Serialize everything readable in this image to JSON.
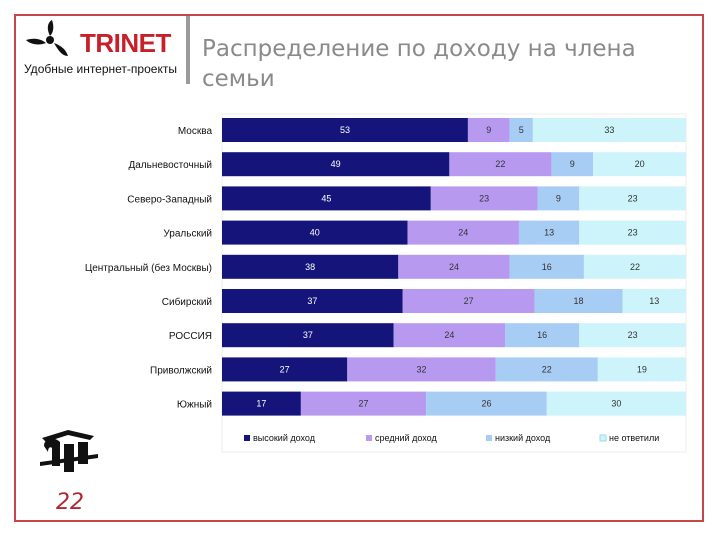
{
  "header": {
    "logo_text": "TRINET",
    "tagline": "Удобные интернет-проекты",
    "title": "Распределение по доходу на члена семьи"
  },
  "footer": {
    "page_number": "22"
  },
  "colors": {
    "frame": "#c8464b",
    "high": "#14147a",
    "medium": "#b79af0",
    "low": "#a8cdf4",
    "none": "#ccf4fa"
  },
  "icons": {
    "logo": "trinet-propeller-logo",
    "emblem": "corporate-emblem"
  },
  "chart_data": {
    "type": "bar",
    "orientation": "horizontal",
    "stacked": true,
    "categories": [
      "Москва",
      "Дальневосточный",
      "Северо-Западный",
      "Уральский",
      "Центральный (без Москвы)",
      "Сибирский",
      "РОССИЯ",
      "Приволжский",
      "Южный"
    ],
    "series": [
      {
        "name": "высокий доход",
        "color": "#14147a",
        "label_color": "#ffffff",
        "values": [
          53,
          49,
          45,
          40,
          38,
          37,
          37,
          27,
          17
        ]
      },
      {
        "name": "средний доход",
        "color": "#b79af0",
        "label_color": "#333333",
        "values": [
          9,
          22,
          23,
          24,
          24,
          27,
          24,
          32,
          27
        ]
      },
      {
        "name": "низкий доход",
        "color": "#a8cdf4",
        "label_color": "#333333",
        "values": [
          5,
          9,
          9,
          13,
          16,
          18,
          16,
          22,
          26
        ]
      },
      {
        "name": "не ответили",
        "color": "#ccf4fa",
        "label_color": "#333333",
        "values": [
          33,
          20,
          23,
          23,
          22,
          13,
          23,
          19,
          30
        ]
      }
    ],
    "legend_position": "bottom",
    "grid": false
  }
}
